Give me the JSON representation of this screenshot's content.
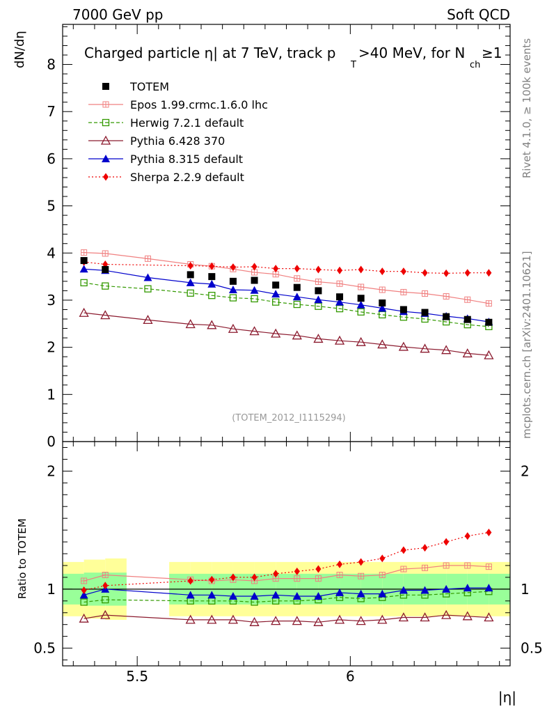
{
  "header": {
    "left": "7000 GeV pp",
    "right": "Soft QCD"
  },
  "side_labels": {
    "top": "Rivet 4.1.0, ≥ 100k events",
    "bottom": "mcplots.cern.ch [arXiv:2401.10621]"
  },
  "chart_data": {
    "type": "line",
    "title_main": "Charged particle η| at 7 TeV, track p",
    "title_sub_T": "T",
    "title_mid": ">40 MeV, for N",
    "title_sub_ch": "ch",
    "title_end": "≥1",
    "ylabel": "dN/dη",
    "xlabel": "|η|",
    "ratio_ylabel": "Ratio to TOTEM",
    "watermark": "(TOTEM_2012_I1115294)",
    "xlim": [
      5.325,
      6.375
    ],
    "ylim": [
      0,
      8.85
    ],
    "ratio_ylim": [
      0.35,
      2.25
    ],
    "x_ticks": [
      5.5,
      6
    ],
    "x_tick_labels": [
      "5.5",
      "6"
    ],
    "y_ticks": [
      0,
      1,
      2,
      3,
      4,
      5,
      6,
      7,
      8
    ],
    "y_tick_labels": [
      "0",
      "1",
      "2",
      "3",
      "4",
      "5",
      "6",
      "7",
      "8"
    ],
    "ratio_ticks": [
      0.5,
      1,
      2
    ],
    "ratio_tick_labels": [
      "0.5",
      "1",
      "2"
    ],
    "data": {
      "name": "TOTEM",
      "x": [
        5.375,
        5.425,
        5.625,
        5.675,
        5.725,
        5.775,
        5.825,
        5.875,
        5.925,
        5.975,
        6.025,
        6.075,
        6.125,
        6.175,
        6.225,
        6.275,
        6.325
      ],
      "y": [
        3.84,
        3.65,
        3.54,
        3.5,
        3.4,
        3.42,
        3.32,
        3.27,
        3.2,
        3.07,
        3.04,
        2.94,
        2.8,
        2.74,
        2.65,
        2.59,
        2.53
      ],
      "band_x": [
        5.325,
        5.375,
        5.375,
        5.425,
        5.425,
        5.475,
        5.475,
        5.575,
        5.575,
        5.625,
        5.625,
        5.675,
        5.675,
        5.725,
        5.725,
        5.775,
        5.775,
        5.825,
        5.825,
        5.875,
        5.875,
        5.925,
        5.925,
        5.975,
        5.975,
        6.025,
        6.025,
        6.075,
        6.075,
        6.125,
        6.125,
        6.175,
        6.175,
        6.225,
        6.225,
        6.275,
        6.275,
        6.325,
        6.325,
        6.375
      ],
      "band_inner": [
        0.13,
        0.13,
        0.14,
        0.14,
        0.14,
        0.14,
        0,
        0,
        0.13,
        0.13,
        0.13,
        0.13,
        0.13,
        0.13,
        0.13,
        0.13,
        0.13,
        0.13,
        0.13,
        0.13,
        0.13,
        0.13,
        0.13,
        0.13,
        0.13,
        0.13,
        0.13,
        0.13,
        0.13,
        0.13,
        0.13,
        0.13,
        0.13,
        0.13,
        0.13,
        0.13,
        0.13,
        0.13,
        0.13,
        0.13
      ],
      "band_outer": [
        0.23,
        0.23,
        0.25,
        0.25,
        0.26,
        0.26,
        0,
        0,
        0.23,
        0.23,
        0.23,
        0.23,
        0.23,
        0.23,
        0.23,
        0.23,
        0.23,
        0.23,
        0.23,
        0.23,
        0.23,
        0.23,
        0.23,
        0.23,
        0.23,
        0.23,
        0.23,
        0.23,
        0.23,
        0.23,
        0.23,
        0.23,
        0.23,
        0.23,
        0.23,
        0.23,
        0.23,
        0.23,
        0.23,
        0.23
      ],
      "color": "#000000"
    },
    "series": [
      {
        "name": "Epos 1.99.crmc.1.6.0 lhc",
        "color": "#f08080",
        "marker": "cross",
        "dash": "",
        "x": [
          5.375,
          5.425,
          5.525,
          5.625,
          5.675,
          5.725,
          5.775,
          5.825,
          5.875,
          5.925,
          5.975,
          6.025,
          6.075,
          6.125,
          6.175,
          6.225,
          6.275,
          6.325
        ],
        "y": [
          4.01,
          3.99,
          3.88,
          3.76,
          3.72,
          3.66,
          3.59,
          3.55,
          3.46,
          3.39,
          3.35,
          3.28,
          3.22,
          3.17,
          3.14,
          3.08,
          3.01,
          2.93
        ],
        "ratio_x": [
          5.375,
          5.425,
          5.625,
          5.675,
          5.725,
          5.775,
          5.825,
          5.875,
          5.925,
          5.975,
          6.025,
          6.075,
          6.125,
          6.175,
          6.225,
          6.275,
          6.325
        ],
        "ratio": [
          1.07,
          1.12,
          1.08,
          1.07,
          1.08,
          1.07,
          1.09,
          1.09,
          1.09,
          1.12,
          1.11,
          1.12,
          1.17,
          1.18,
          1.2,
          1.2,
          1.19
        ]
      },
      {
        "name": "Herwig 7.2.1 default",
        "color": "#339900",
        "marker": "square-open",
        "dash": "5,3",
        "x": [
          5.375,
          5.425,
          5.525,
          5.625,
          5.675,
          5.725,
          5.775,
          5.825,
          5.875,
          5.925,
          5.975,
          6.025,
          6.075,
          6.125,
          6.175,
          6.225,
          6.275,
          6.325
        ],
        "y": [
          3.37,
          3.3,
          3.24,
          3.15,
          3.1,
          3.05,
          3.03,
          2.96,
          2.91,
          2.87,
          2.82,
          2.75,
          2.69,
          2.64,
          2.6,
          2.54,
          2.48,
          2.44
        ],
        "ratio_x": [
          5.375,
          5.425,
          5.625,
          5.675,
          5.725,
          5.775,
          5.825,
          5.875,
          5.925,
          5.975,
          6.025,
          6.075,
          6.125,
          6.175,
          6.225,
          6.275,
          6.325
        ],
        "ratio": [
          0.89,
          0.91,
          0.9,
          0.9,
          0.9,
          0.89,
          0.9,
          0.9,
          0.91,
          0.93,
          0.92,
          0.93,
          0.95,
          0.95,
          0.96,
          0.97,
          0.98
        ]
      },
      {
        "name": "Pythia 6.428 370",
        "color": "#8b1a2e",
        "marker": "triangle-open",
        "dash": "",
        "x": [
          5.375,
          5.425,
          5.525,
          5.625,
          5.675,
          5.725,
          5.775,
          5.825,
          5.875,
          5.925,
          5.975,
          6.025,
          6.075,
          6.125,
          6.175,
          6.225,
          6.275,
          6.325
        ],
        "y": [
          2.73,
          2.68,
          2.58,
          2.49,
          2.47,
          2.39,
          2.34,
          2.29,
          2.25,
          2.18,
          2.14,
          2.11,
          2.06,
          2.01,
          1.97,
          1.94,
          1.87,
          1.83
        ],
        "ratio_x": [
          5.375,
          5.425,
          5.625,
          5.675,
          5.725,
          5.775,
          5.825,
          5.875,
          5.925,
          5.975,
          6.025,
          6.075,
          6.125,
          6.175,
          6.225,
          6.275,
          6.325
        ],
        "ratio": [
          0.75,
          0.78,
          0.74,
          0.74,
          0.74,
          0.72,
          0.73,
          0.73,
          0.72,
          0.74,
          0.73,
          0.74,
          0.76,
          0.76,
          0.78,
          0.77,
          0.76
        ]
      },
      {
        "name": "Pythia 8.315 default",
        "color": "#0000cc",
        "marker": "triangle-filled",
        "dash": "",
        "x": [
          5.375,
          5.425,
          5.525,
          5.625,
          5.675,
          5.725,
          5.775,
          5.825,
          5.875,
          5.925,
          5.975,
          6.025,
          6.075,
          6.125,
          6.175,
          6.225,
          6.275,
          6.325
        ],
        "y": [
          3.66,
          3.63,
          3.48,
          3.37,
          3.34,
          3.22,
          3.21,
          3.13,
          3.07,
          3.01,
          2.96,
          2.9,
          2.83,
          2.76,
          2.72,
          2.66,
          2.61,
          2.54
        ],
        "ratio_x": [
          5.375,
          5.425,
          5.625,
          5.675,
          5.725,
          5.775,
          5.825,
          5.875,
          5.925,
          5.975,
          6.025,
          6.075,
          6.125,
          6.175,
          6.225,
          6.275,
          6.325
        ],
        "ratio": [
          0.95,
          1.0,
          0.95,
          0.95,
          0.94,
          0.94,
          0.95,
          0.94,
          0.94,
          0.97,
          0.96,
          0.96,
          0.99,
          0.99,
          1.0,
          1.01,
          1.01
        ]
      },
      {
        "name": "Sherpa 2.2.9 default",
        "color": "#ee0000",
        "marker": "diamond",
        "dash": "2,3",
        "x": [
          5.375,
          5.425,
          5.625,
          5.675,
          5.725,
          5.775,
          5.825,
          5.875,
          5.925,
          5.975,
          6.025,
          6.075,
          6.125,
          6.175,
          6.225,
          6.275,
          6.325
        ],
        "y": [
          3.81,
          3.76,
          3.73,
          3.72,
          3.7,
          3.71,
          3.67,
          3.67,
          3.65,
          3.63,
          3.65,
          3.61,
          3.61,
          3.58,
          3.57,
          3.58,
          3.58
        ],
        "ratio_x": [
          5.375,
          5.425,
          5.625,
          5.675,
          5.725,
          5.775,
          5.825,
          5.875,
          5.925,
          5.975,
          6.025,
          6.075,
          6.125,
          6.175,
          6.225,
          6.275,
          6.325
        ],
        "ratio": [
          0.99,
          1.03,
          1.07,
          1.08,
          1.1,
          1.1,
          1.13,
          1.15,
          1.17,
          1.21,
          1.23,
          1.26,
          1.33,
          1.35,
          1.4,
          1.45,
          1.48
        ]
      }
    ]
  }
}
